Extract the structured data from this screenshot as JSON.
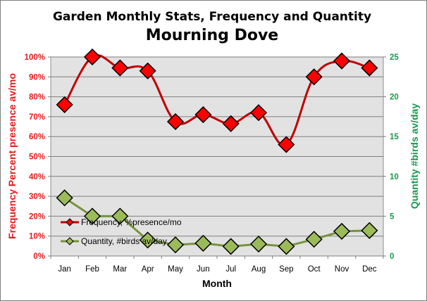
{
  "chart_data": {
    "type": "line",
    "title": "Garden Monthly Stats, Frequency and Quantity",
    "subtitle": "Mourning Dove",
    "xlabel": "Month",
    "ylabel_left": "Frequency  Percent presence av/mo",
    "ylabel_right": "Quantity  #birds av/day",
    "categories": [
      "Jan",
      "Feb",
      "Mar",
      "Apr",
      "May",
      "Jun",
      "Jul",
      "Aug",
      "Sep",
      "Oct",
      "Nov",
      "Dec"
    ],
    "y_left": {
      "min": 0,
      "max": 100,
      "step": 10,
      "format": "percent",
      "color": "#e31b1b"
    },
    "y_right": {
      "min": 0,
      "max": 25,
      "step": 5,
      "color": "#169a4a"
    },
    "grid": true,
    "plot_background": "#e2e2e2",
    "legend_position": "lower-left, inside plot",
    "series": [
      {
        "name": "Frequency, %presence/mo",
        "axis": "left",
        "line_color": "#c00000",
        "marker_color": "#ff0000",
        "marker": "diamond",
        "values": [
          76,
          100,
          94.5,
          93,
          67.5,
          71,
          66.5,
          72,
          56,
          90,
          98,
          94.5
        ]
      },
      {
        "name": "Quantity, #birds av/day",
        "axis": "right",
        "line_color": "#77933c",
        "marker_color": "#9bbb59",
        "marker": "diamond",
        "values": [
          7.3,
          5.0,
          5.0,
          2.0,
          1.4,
          1.6,
          1.2,
          1.5,
          1.2,
          2.1,
          3.1,
          3.2
        ]
      }
    ]
  }
}
